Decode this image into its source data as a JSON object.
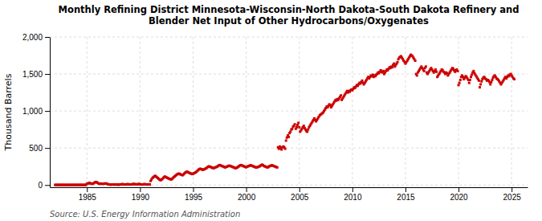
{
  "chart_data": {
    "type": "scatter",
    "title": "Monthly Refining District Minnesota-Wisconsin-North Dakota-South Dakota Refinery and\nBlender Net Input of Other Hydrocarbons/Oxygenates",
    "y_label": "Thousand Barrels",
    "source": "Source: U.S. Energy Information Administration",
    "color": "#cc0000",
    "marker": "square",
    "grid": true,
    "xlim": [
      1981.5,
      2026.5
    ],
    "ylim": [
      -30,
      2000
    ],
    "xticks": [
      1985,
      1990,
      1995,
      2000,
      2005,
      2010,
      2015,
      2020,
      2025
    ],
    "yticks": [
      0,
      500,
      {
        "value": 1000,
        "label": "1,000"
      },
      {
        "value": 1500,
        "label": "1,500"
      },
      {
        "value": 2000,
        "label": "2,000"
      }
    ],
    "x": [
      1982.0,
      1982.08,
      1982.17,
      1982.25,
      1982.33,
      1982.42,
      1982.5,
      1982.58,
      1982.67,
      1982.75,
      1982.83,
      1982.92,
      1983.0,
      1983.08,
      1983.17,
      1983.25,
      1983.33,
      1983.42,
      1983.5,
      1983.58,
      1983.67,
      1983.75,
      1983.83,
      1983.92,
      1984.0,
      1984.08,
      1984.17,
      1984.25,
      1984.33,
      1984.42,
      1984.5,
      1984.58,
      1984.67,
      1984.75,
      1984.83,
      1984.92,
      1985.0,
      1985.08,
      1985.17,
      1985.25,
      1985.33,
      1985.42,
      1985.5,
      1985.58,
      1985.67,
      1985.75,
      1985.83,
      1985.92,
      1986.0,
      1986.08,
      1986.17,
      1986.25,
      1986.33,
      1986.42,
      1986.5,
      1986.58,
      1986.67,
      1986.75,
      1986.83,
      1986.92,
      1987.0,
      1987.08,
      1987.17,
      1987.25,
      1987.33,
      1987.42,
      1987.5,
      1987.58,
      1987.67,
      1987.75,
      1987.83,
      1987.92,
      1988.0,
      1988.08,
      1988.17,
      1988.25,
      1988.33,
      1988.42,
      1988.5,
      1988.58,
      1988.67,
      1988.75,
      1988.83,
      1988.92,
      1989.0,
      1989.08,
      1989.17,
      1989.25,
      1989.33,
      1989.42,
      1989.5,
      1989.58,
      1989.67,
      1989.75,
      1989.83,
      1989.92,
      1990.0,
      1990.08,
      1990.17,
      1990.25,
      1990.33,
      1990.42,
      1990.5,
      1990.58,
      1990.67,
      1990.75,
      1990.83,
      1990.92,
      1991.0,
      1991.08,
      1991.17,
      1991.25,
      1991.33,
      1991.42,
      1991.5,
      1991.58,
      1991.67,
      1991.75,
      1991.83,
      1991.92,
      1992.0,
      1992.08,
      1992.17,
      1992.25,
      1992.33,
      1992.42,
      1992.5,
      1992.58,
      1992.67,
      1992.75,
      1992.83,
      1992.92,
      1993.0,
      1993.08,
      1993.17,
      1993.25,
      1993.33,
      1993.42,
      1993.5,
      1993.58,
      1993.67,
      1993.75,
      1993.83,
      1993.92,
      1994.0,
      1994.08,
      1994.17,
      1994.25,
      1994.33,
      1994.42,
      1994.5,
      1994.58,
      1994.67,
      1994.75,
      1994.83,
      1994.92,
      1995.0,
      1995.08,
      1995.17,
      1995.25,
      1995.33,
      1995.42,
      1995.5,
      1995.58,
      1995.67,
      1995.75,
      1995.83,
      1995.92,
      1996.0,
      1996.08,
      1996.17,
      1996.25,
      1996.33,
      1996.42,
      1996.5,
      1996.58,
      1996.67,
      1996.75,
      1996.83,
      1996.92,
      1997.0,
      1997.08,
      1997.17,
      1997.25,
      1997.33,
      1997.42,
      1997.5,
      1997.58,
      1997.67,
      1997.75,
      1997.83,
      1997.92,
      1998.0,
      1998.08,
      1998.17,
      1998.25,
      1998.33,
      1998.42,
      1998.5,
      1998.58,
      1998.67,
      1998.75,
      1998.83,
      1998.92,
      1999.0,
      1999.08,
      1999.17,
      1999.25,
      1999.33,
      1999.42,
      1999.5,
      1999.58,
      1999.67,
      1999.75,
      1999.83,
      1999.92,
      2000.0,
      2000.08,
      2000.17,
      2000.25,
      2000.33,
      2000.42,
      2000.5,
      2000.58,
      2000.67,
      2000.75,
      2000.83,
      2000.92,
      2001.0,
      2001.08,
      2001.17,
      2001.25,
      2001.33,
      2001.42,
      2001.5,
      2001.58,
      2001.67,
      2001.75,
      2001.83,
      2001.92,
      2002.0,
      2002.08,
      2002.17,
      2002.25,
      2002.33,
      2002.42,
      2002.5,
      2002.58,
      2002.67,
      2002.75,
      2002.83,
      2002.92,
      2003.0,
      2003.08,
      2003.17,
      2003.25,
      2003.33,
      2003.42,
      2003.5,
      2003.58,
      2003.67,
      2003.75,
      2003.83,
      2003.92,
      2004.0,
      2004.08,
      2004.17,
      2004.25,
      2004.33,
      2004.42,
      2004.5,
      2004.58,
      2004.67,
      2004.75,
      2004.83,
      2004.92,
      2005.0,
      2005.08,
      2005.17,
      2005.25,
      2005.33,
      2005.42,
      2005.5,
      2005.58,
      2005.67,
      2005.75,
      2005.83,
      2005.92,
      2006.0,
      2006.08,
      2006.17,
      2006.25,
      2006.33,
      2006.42,
      2006.5,
      2006.58,
      2006.67,
      2006.75,
      2006.83,
      2006.92,
      2007.0,
      2007.08,
      2007.17,
      2007.25,
      2007.33,
      2007.42,
      2007.5,
      2007.58,
      2007.67,
      2007.75,
      2007.83,
      2007.92,
      2008.0,
      2008.08,
      2008.17,
      2008.25,
      2008.33,
      2008.42,
      2008.5,
      2008.58,
      2008.67,
      2008.75,
      2008.83,
      2008.92,
      2009.0,
      2009.08,
      2009.17,
      2009.25,
      2009.33,
      2009.42,
      2009.5,
      2009.58,
      2009.67,
      2009.75,
      2009.83,
      2009.92,
      2010.0,
      2010.08,
      2010.17,
      2010.25,
      2010.33,
      2010.42,
      2010.5,
      2010.58,
      2010.67,
      2010.75,
      2010.83,
      2010.92,
      2011.0,
      2011.08,
      2011.17,
      2011.25,
      2011.33,
      2011.42,
      2011.5,
      2011.58,
      2011.67,
      2011.75,
      2011.83,
      2011.92,
      2012.0,
      2012.08,
      2012.17,
      2012.25,
      2012.33,
      2012.42,
      2012.5,
      2012.58,
      2012.67,
      2012.75,
      2012.83,
      2012.92,
      2013.0,
      2013.08,
      2013.17,
      2013.25,
      2013.33,
      2013.42,
      2013.5,
      2013.58,
      2013.67,
      2013.75,
      2013.83,
      2013.92,
      2014.0,
      2014.08,
      2014.17,
      2014.25,
      2014.33,
      2014.42,
      2014.5,
      2014.58,
      2014.67,
      2014.75,
      2014.83,
      2014.92,
      2015.0,
      2015.08,
      2015.17,
      2015.25,
      2015.33,
      2015.42,
      2015.5,
      2015.58,
      2015.67,
      2015.75,
      2015.83,
      2015.92,
      2016.0,
      2016.08,
      2016.17,
      2016.25,
      2016.33,
      2016.42,
      2016.5,
      2016.58,
      2016.67,
      2016.75,
      2016.83,
      2016.92,
      2017.0,
      2017.08,
      2017.17,
      2017.25,
      2017.33,
      2017.42,
      2017.5,
      2017.58,
      2017.67,
      2017.75,
      2017.83,
      2017.92,
      2018.0,
      2018.08,
      2018.17,
      2018.25,
      2018.33,
      2018.42,
      2018.5,
      2018.58,
      2018.67,
      2018.75,
      2018.83,
      2018.92,
      2019.0,
      2019.08,
      2019.17,
      2019.25,
      2019.33,
      2019.42,
      2019.5,
      2019.58,
      2019.67,
      2019.75,
      2019.83,
      2019.92,
      2020.0,
      2020.08,
      2020.17,
      2020.25,
      2020.33,
      2020.42,
      2020.5,
      2020.58,
      2020.67,
      2020.75,
      2020.83,
      2020.92,
      2021.0,
      2021.08,
      2021.17,
      2021.25,
      2021.33,
      2021.42,
      2021.5,
      2021.58,
      2021.67,
      2021.75,
      2021.83,
      2021.92,
      2022.0,
      2022.08,
      2022.17,
      2022.25,
      2022.33,
      2022.42,
      2022.5,
      2022.58,
      2022.67,
      2022.75,
      2022.83,
      2022.92,
      2023.0,
      2023.08,
      2023.17,
      2023.25,
      2023.33,
      2023.42,
      2023.5,
      2023.58,
      2023.67,
      2023.75,
      2023.83,
      2023.92,
      2024.0,
      2024.08,
      2024.17,
      2024.25,
      2024.33,
      2024.42,
      2024.5,
      2024.58,
      2024.67,
      2024.75,
      2024.83,
      2024.92,
      2025.0,
      2025.08,
      2025.17,
      2025.25
    ],
    "values": [
      2,
      1,
      2,
      1,
      2,
      1,
      2,
      1,
      2,
      1,
      2,
      1,
      1,
      1,
      2,
      1,
      1,
      2,
      1,
      1,
      2,
      1,
      1,
      2,
      1,
      2,
      1,
      2,
      1,
      2,
      1,
      2,
      1,
      2,
      1,
      2,
      18,
      20,
      25,
      30,
      22,
      18,
      15,
      20,
      28,
      35,
      42,
      38,
      30,
      22,
      18,
      15,
      20,
      18,
      15,
      18,
      20,
      22,
      18,
      15,
      10,
      8,
      6,
      5,
      6,
      8,
      7,
      5,
      6,
      8,
      6,
      5,
      5,
      6,
      8,
      10,
      12,
      10,
      8,
      6,
      8,
      10,
      12,
      10,
      8,
      6,
      8,
      10,
      12,
      14,
      12,
      10,
      8,
      10,
      12,
      14,
      10,
      8,
      6,
      8,
      10,
      12,
      10,
      8,
      6,
      8,
      10,
      8,
      55,
      75,
      95,
      105,
      115,
      125,
      115,
      105,
      95,
      85,
      75,
      65,
      70,
      80,
      92,
      105,
      115,
      108,
      102,
      96,
      90,
      85,
      80,
      75,
      80,
      92,
      105,
      115,
      125,
      135,
      145,
      150,
      155,
      148,
      142,
      138,
      132,
      142,
      155,
      165,
      175,
      180,
      175,
      168,
      162,
      158,
      152,
      148,
      152,
      160,
      165,
      172,
      182,
      195,
      205,
      215,
      220,
      215,
      210,
      205,
      210,
      215,
      222,
      228,
      238,
      248,
      252,
      248,
      242,
      238,
      232,
      228,
      232,
      238,
      242,
      248,
      255,
      265,
      270,
      265,
      260,
      255,
      250,
      245,
      238,
      242,
      248,
      252,
      258,
      262,
      258,
      252,
      248,
      242,
      238,
      232,
      228,
      232,
      238,
      248,
      255,
      265,
      270,
      265,
      260,
      255,
      250,
      245,
      240,
      248,
      252,
      258,
      262,
      268,
      262,
      258,
      252,
      248,
      242,
      238,
      238,
      242,
      248,
      252,
      260,
      268,
      275,
      268,
      258,
      252,
      248,
      242,
      238,
      242,
      252,
      258,
      262,
      268,
      262,
      258,
      252,
      248,
      242,
      238,
      510,
      490,
      520,
      500,
      480,
      510,
      520,
      510,
      490,
      600,
      640,
      670,
      650,
      700,
      720,
      750,
      760,
      790,
      800,
      820,
      760,
      780,
      810,
      840,
      780,
      720,
      740,
      760,
      780,
      800,
      770,
      750,
      730,
      720,
      750,
      780,
      800,
      820,
      840,
      860,
      880,
      900,
      880,
      860,
      880,
      900,
      920,
      940,
      950,
      960,
      970,
      980,
      1000,
      1020,
      1040,
      1060,
      1050,
      1070,
      1090,
      1080,
      1050,
      1070,
      1090,
      1110,
      1130,
      1150,
      1140,
      1160,
      1150,
      1170,
      1190,
      1210,
      1150,
      1170,
      1190,
      1210,
      1230,
      1250,
      1270,
      1250,
      1270,
      1260,
      1280,
      1290,
      1280,
      1300,
      1320,
      1310,
      1330,
      1350,
      1340,
      1360,
      1380,
      1370,
      1390,
      1410,
      1380,
      1360,
      1380,
      1400,
      1420,
      1440,
      1460,
      1440,
      1460,
      1480,
      1470,
      1490,
      1460,
      1480,
      1470,
      1490,
      1500,
      1520,
      1510,
      1530,
      1550,
      1530,
      1520,
      1540,
      1500,
      1520,
      1540,
      1560,
      1550,
      1570,
      1590,
      1580,
      1600,
      1590,
      1620,
      1640,
      1600,
      1620,
      1640,
      1660,
      1700,
      1720,
      1730,
      1740,
      1720,
      1700,
      1680,
      1660,
      1640,
      1660,
      1680,
      1700,
      1720,
      1740,
      1760,
      1750,
      1740,
      1720,
      1700,
      1680,
      1500,
      1480,
      1520,
      1540,
      1560,
      1580,
      1600,
      1580,
      1560,
      1540,
      1580,
      1600,
      1520,
      1500,
      1520,
      1540,
      1560,
      1580,
      1560,
      1540,
      1520,
      1540,
      1560,
      1530,
      1460,
      1480,
      1500,
      1520,
      1540,
      1560,
      1550,
      1530,
      1520,
      1500,
      1520,
      1510,
      1480,
      1500,
      1520,
      1540,
      1560,
      1580,
      1570,
      1550,
      1530,
      1550,
      1560,
      1540,
      1350,
      1380,
      1420,
      1460,
      1480,
      1460,
      1430,
      1450,
      1470,
      1460,
      1440,
      1420,
      1380,
      1420,
      1460,
      1490,
      1520,
      1540,
      1510,
      1490,
      1470,
      1450,
      1430,
      1410,
      1320,
      1360,
      1400,
      1430,
      1450,
      1460,
      1440,
      1430,
      1410,
      1420,
      1410,
      1390,
      1360,
      1390,
      1420,
      1450,
      1470,
      1480,
      1460,
      1440,
      1430,
      1420,
      1400,
      1380,
      1360,
      1380,
      1400,
      1420,
      1440,
      1460,
      1440,
      1460,
      1480,
      1470,
      1490,
      1500,
      1480,
      1460,
      1440,
      1430
    ]
  }
}
